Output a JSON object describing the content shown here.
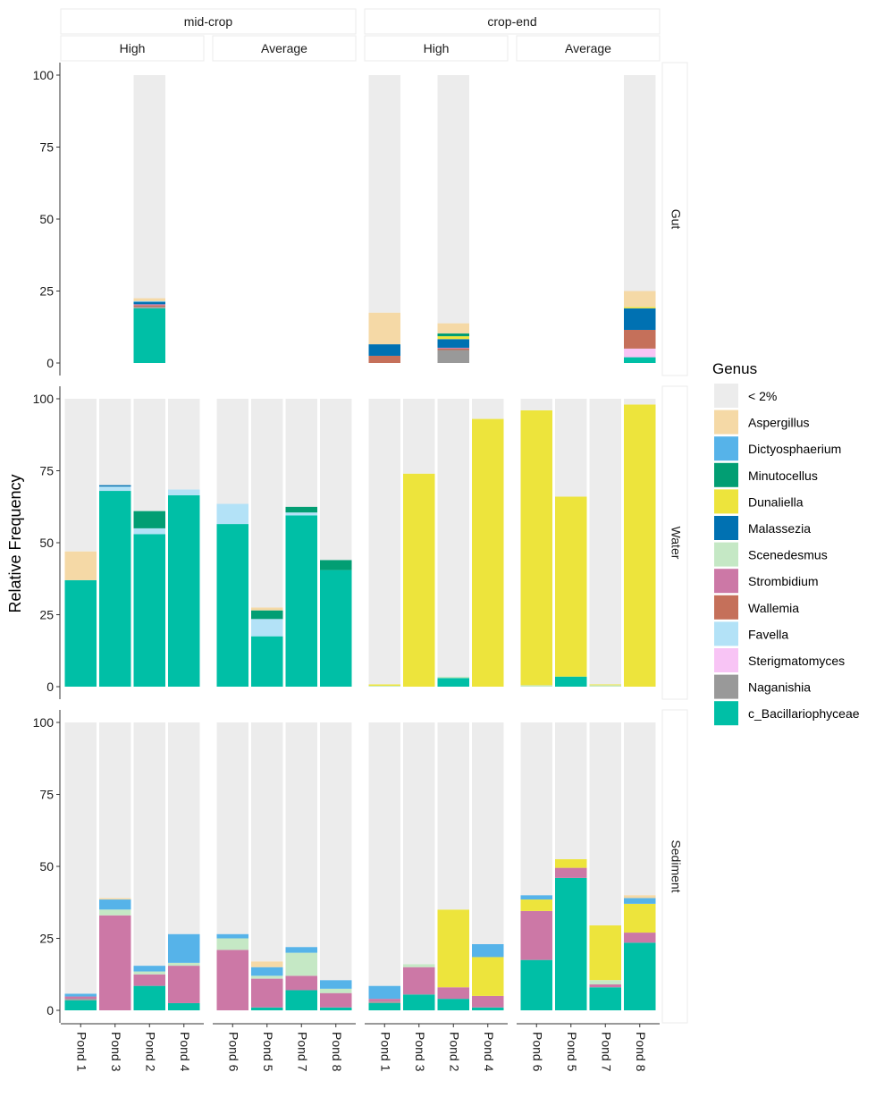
{
  "chart_data": {
    "type": "bar",
    "stacked": true,
    "ylabel": "Relative Frequency",
    "ylim": [
      0,
      100
    ],
    "yticks": [
      0,
      25,
      50,
      75,
      100
    ],
    "col_groups": [
      {
        "label": "mid-crop",
        "sub": [
          "High",
          "Average"
        ]
      },
      {
        "label": "crop-end",
        "sub": [
          "High",
          "Average"
        ]
      }
    ],
    "panel_categories": [
      [
        "Pond 1",
        "Pond 3",
        "Pond 2",
        "Pond 4"
      ],
      [
        "Pond 6",
        "Pond 5",
        "Pond 7",
        "Pond 8"
      ],
      [
        "Pond 1",
        "Pond 3",
        "Pond 2",
        "Pond 4"
      ],
      [
        "Pond 6",
        "Pond 5",
        "Pond 7",
        "Pond 8"
      ]
    ],
    "rows": [
      "Gut",
      "Water",
      "Sediment"
    ],
    "legend": {
      "title": "Genus",
      "position": "right",
      "entries": [
        {
          "name": "< 2%",
          "color": "#ececec"
        },
        {
          "name": "Aspergillus",
          "color": "#f5d9a6"
        },
        {
          "name": "Dictyosphaerium",
          "color": "#56b3e9"
        },
        {
          "name": "Minutocellus",
          "color": "#029e73"
        },
        {
          "name": "Dunaliella",
          "color": "#ede43c"
        },
        {
          "name": "Malassezia",
          "color": "#0071b2"
        },
        {
          "name": "Scenedesmus",
          "color": "#c5e8c5"
        },
        {
          "name": "Strombidium",
          "color": "#cc78a6"
        },
        {
          "name": "Wallemia",
          "color": "#c5705a"
        },
        {
          "name": "Favella",
          "color": "#b3e2f7"
        },
        {
          "name": "Sterigmatomyces",
          "color": "#f8c4f5"
        },
        {
          "name": "Naganishia",
          "color": "#999999"
        },
        {
          "name": "c_Bacillariophyceae",
          "color": "#00bfa6"
        }
      ]
    },
    "stack_order": [
      "c_Bacillariophyceae",
      "Naganishia",
      "Sterigmatomyces",
      "Favella",
      "Wallemia",
      "Strombidium",
      "Scenedesmus",
      "Malassezia",
      "Dunaliella",
      "Minutocellus",
      "Dictyosphaerium",
      "Aspergillus",
      "< 2%"
    ],
    "panels": [
      [
        [
          null,
          null,
          {
            "c_Bacillariophyceae": 19,
            "Naganishia": 0.5,
            "Wallemia": 0.5,
            "Strombidium": 0.4,
            "Malassezia": 0.8,
            "Dictyosphaerium": 0.3,
            "Aspergillus": 1,
            "< 2%": 77.5
          },
          null
        ],
        [
          null,
          null,
          null,
          null
        ],
        [
          {
            "Wallemia": 2.5,
            "Malassezia": 4,
            "Aspergillus": 11,
            "< 2%": 82.5
          },
          null,
          {
            "Wallemia": 0.5,
            "Strombidium": 0.3,
            "Naganishia": 4.5,
            "Malassezia": 3,
            "Minutocellus": 1,
            "Dunaliella": 1,
            "Aspergillus": 3.5,
            "< 2%": 86.2
          },
          null
        ],
        [
          null,
          null,
          null,
          {
            "Wallemia": 6.5,
            "Sterigmatomyces": 3,
            "Malassezia": 7.5,
            "c_Bacillariophyceae": 2,
            "Dunaliella": 0.5,
            "Aspergillus": 5.5,
            "< 2%": 75
          }
        ]
      ],
      [
        [
          {
            "c_Bacillariophyceae": 37,
            "Aspergillus": 10,
            "< 2%": 53
          },
          {
            "Malassezia": 0.5,
            "Favella": 1.5,
            "c_Bacillariophyceae": 68,
            "< 2%": 30
          },
          {
            "Minutocellus": 6,
            "Favella": 2,
            "c_Bacillariophyceae": 53,
            "< 2%": 39
          },
          {
            "Favella": 2,
            "c_Bacillariophyceae": 66.5,
            "< 2%": 31.5
          }
        ],
        [
          {
            "Favella": 7,
            "c_Bacillariophyceae": 56.5,
            "< 2%": 36.5
          },
          {
            "Minutocellus": 3,
            "Favella": 6,
            "c_Bacillariophyceae": 17.5,
            "Aspergillus": 1,
            "< 2%": 72.5
          },
          {
            "Minutocellus": 2,
            "Favella": 1,
            "c_Bacillariophyceae": 59.5,
            "< 2%": 37.5
          },
          {
            "Minutocellus": 3.5,
            "c_Bacillariophyceae": 40.5,
            "< 2%": 56
          }
        ],
        [
          {
            "Scenedesmus": 0.3,
            "Dunaliella": 0.5,
            "< 2%": 99.2
          },
          {
            "Dunaliella": 74,
            "< 2%": 26
          },
          {
            "c_Bacillariophyceae": 3,
            "Scenedesmus": 0.5,
            "< 2%": 96.5
          },
          {
            "Dunaliella": 93,
            "< 2%": 7
          }
        ],
        [
          {
            "Dunaliella": 95.5,
            "Scenedesmus": 0.5,
            "< 2%": 4
          },
          {
            "Dunaliella": 62.5,
            "c_Bacillariophyceae": 3.5,
            "< 2%": 34
          },
          {
            "Scenedesmus": 0.5,
            "Dunaliella": 0.3,
            "< 2%": 99.2
          },
          {
            "Dunaliella": 98,
            "< 2%": 2
          }
        ]
      ],
      [
        [
          {
            "Strombidium": 0.8,
            "Naganishia": 0.5,
            "Dictyosphaerium": 1,
            "c_Bacillariophyceae": 3.5,
            "< 2%": 94.2
          },
          {
            "Strombidium": 33,
            "Scenedesmus": 2,
            "Dictyosphaerium": 3.5,
            "Aspergillus": 0.5,
            "< 2%": 61
          },
          {
            "Strombidium": 4,
            "Scenedesmus": 1,
            "Dictyosphaerium": 2,
            "c_Bacillariophyceae": 8.5,
            "< 2%": 84.5
          },
          {
            "Strombidium": 13,
            "Scenedesmus": 1,
            "Dictyosphaerium": 10,
            "c_Bacillariophyceae": 2.5,
            "< 2%": 73.5
          }
        ],
        [
          {
            "Strombidium": 21,
            "Scenedesmus": 4,
            "Dictyosphaerium": 1.5,
            "< 2%": 73.5
          },
          {
            "Strombidium": 10,
            "Scenedesmus": 1,
            "Dictyosphaerium": 3,
            "c_Bacillariophyceae": 1,
            "Aspergillus": 2,
            "< 2%": 83
          },
          {
            "Strombidium": 5,
            "Scenedesmus": 8,
            "Dictyosphaerium": 2,
            "c_Bacillariophyceae": 7,
            "< 2%": 78
          },
          {
            "Strombidium": 5,
            "Scenedesmus": 1.5,
            "Dictyosphaerium": 3,
            "c_Bacillariophyceae": 1,
            "< 2%": 89.5
          }
        ],
        [
          {
            "Strombidium": 1,
            "Naganishia": 0.5,
            "Dictyosphaerium": 4.5,
            "c_Bacillariophyceae": 2.5,
            "< 2%": 91.5
          },
          {
            "Strombidium": 9.5,
            "Scenedesmus": 1,
            "c_Bacillariophyceae": 5.5,
            "< 2%": 84
          },
          {
            "Strombidium": 4,
            "Dunaliella": 27,
            "c_Bacillariophyceae": 4,
            "< 2%": 65
          },
          {
            "Strombidium": 4,
            "Dunaliella": 13.5,
            "Dictyosphaerium": 4.5,
            "c_Bacillariophyceae": 1,
            "< 2%": 77
          }
        ],
        [
          {
            "Strombidium": 17,
            "Dunaliella": 4,
            "Dictyosphaerium": 1.5,
            "c_Bacillariophyceae": 17.5,
            "< 2%": 60
          },
          {
            "Strombidium": 3.5,
            "Dunaliella": 3,
            "c_Bacillariophyceae": 46,
            "< 2%": 47.5
          },
          {
            "Strombidium": 1,
            "Scenedesmus": 1.5,
            "Dunaliella": 19,
            "c_Bacillariophyceae": 8,
            "< 2%": 70.5
          },
          {
            "Strombidium": 3.5,
            "Dunaliella": 10,
            "Dictyosphaerium": 2,
            "c_Bacillariophyceae": 23.5,
            "Aspergillus": 1,
            "< 2%": 60
          }
        ]
      ]
    ]
  }
}
